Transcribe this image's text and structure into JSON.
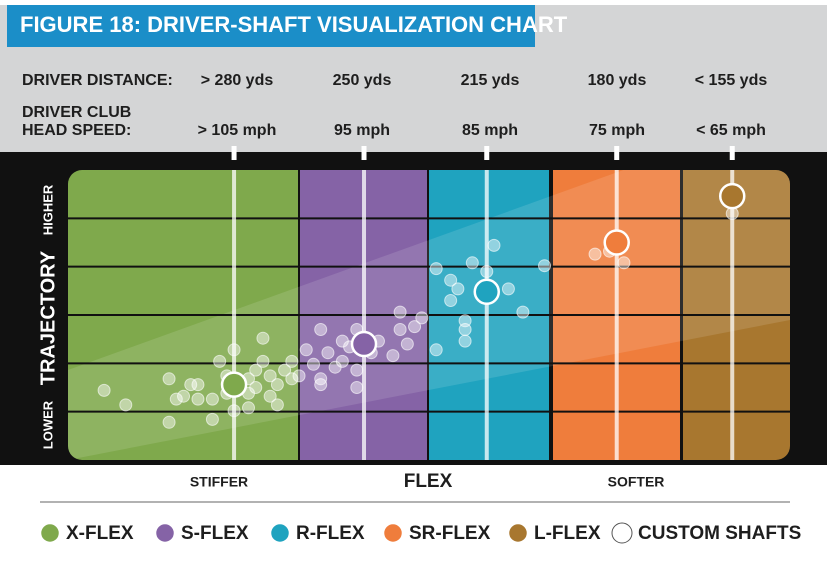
{
  "header": {
    "rows": [
      {
        "label": "DRIVER DISTANCE:",
        "values": [
          "> 280 yds",
          "250 yds",
          "215 yds",
          "180 yds",
          "< 155 yds"
        ]
      },
      {
        "label_lines": [
          "DRIVER CLUB",
          "HEAD SPEED:"
        ],
        "values": [
          "> 105 mph",
          "95 mph",
          "85 mph",
          "75 mph",
          "< 65 mph"
        ]
      }
    ]
  },
  "chart_data": {
    "type": "scatter",
    "title": "FIGURE 18: DRIVER-SHAFT VISUALIZATION CHART",
    "xlabel": "FLEX",
    "x_annotations": [
      "STIFFER",
      "SOFTER"
    ],
    "ylabel": "TRAJECTORY",
    "y_annotations": [
      "LOWER",
      "HIGHER"
    ],
    "xlim": [
      0,
      100
    ],
    "ylim": [
      0,
      100
    ],
    "grid": true,
    "series": [
      {
        "name": "X-FLEX",
        "color": "#7fa94c",
        "x": [
          23
        ],
        "y": [
          26
        ]
      },
      {
        "name": "S-FLEX",
        "color": "#8563a6",
        "x": [
          41
        ],
        "y": [
          40
        ]
      },
      {
        "name": "R-FLEX",
        "color": "#1fa3bf",
        "x": [
          58
        ],
        "y": [
          58
        ]
      },
      {
        "name": "SR-FLEX",
        "color": "#ef7d3c",
        "x": [
          76
        ],
        "y": [
          75
        ]
      },
      {
        "name": "L-FLEX",
        "color": "#a8772f",
        "x": [
          92
        ],
        "y": [
          91
        ]
      },
      {
        "name": "CUSTOM SHAFTS",
        "color": "#ffffff",
        "x": [
          5,
          8,
          14,
          15,
          14,
          17,
          18,
          20,
          20,
          21,
          23,
          23,
          25,
          25,
          26,
          27,
          27,
          28,
          29,
          29,
          30,
          31,
          31,
          22,
          25,
          26,
          28,
          22,
          18,
          16,
          32,
          34,
          33,
          35,
          35,
          36,
          38,
          38,
          40,
          40,
          40,
          42,
          43,
          45,
          46,
          46,
          47,
          48,
          49,
          35,
          37,
          39,
          51,
          53,
          53,
          55,
          55,
          55,
          56,
          58,
          59,
          61,
          63,
          66,
          51,
          54,
          73,
          75,
          77,
          92
        ],
        "y": [
          24,
          19,
          13,
          21,
          28,
          26,
          21,
          21,
          14,
          34,
          17,
          38,
          18,
          23,
          31,
          42,
          34,
          22,
          26,
          19,
          31,
          28,
          34,
          29,
          28,
          25,
          29,
          23,
          26,
          22,
          29,
          33,
          38,
          45,
          26,
          37,
          41,
          34,
          31,
          25,
          45,
          37,
          41,
          36,
          51,
          45,
          40,
          46,
          49,
          28,
          32,
          39,
          38,
          55,
          62,
          48,
          45,
          41,
          68,
          65,
          74,
          59,
          51,
          67,
          66,
          59,
          71,
          72,
          68,
          85
        ]
      }
    ]
  }
}
